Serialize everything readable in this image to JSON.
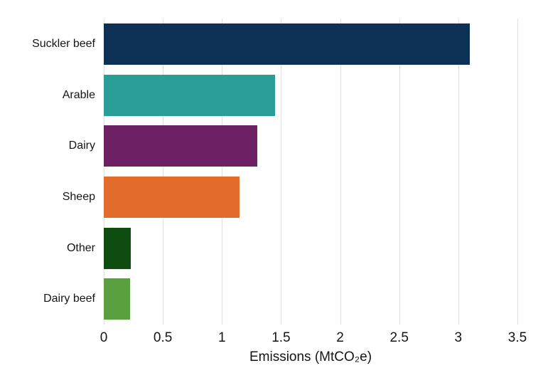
{
  "chart_data": {
    "type": "bar",
    "orientation": "horizontal",
    "title": "",
    "categories": [
      "Suckler beef",
      "Arable",
      "Dairy",
      "Sheep",
      "Other",
      "Dairy beef"
    ],
    "values": [
      3.1,
      1.45,
      1.3,
      1.15,
      0.23,
      0.22
    ],
    "bar_colors": [
      "#0c3155",
      "#2a9d96",
      "#6e2164",
      "#e36c2a",
      "#0e4c0f",
      "#5ba03f"
    ],
    "xlabel": "Emissions (MtCO₂e)",
    "ylabel": "",
    "xlim": [
      0,
      3.5
    ],
    "xticks": [
      0,
      0.5,
      1,
      1.5,
      2,
      2.5,
      3,
      3.5
    ],
    "xtick_labels": [
      "0",
      "0.5",
      "1",
      "1.5",
      "2",
      "2.5",
      "3",
      "3.5"
    ],
    "grid": "vertical",
    "legend": "none"
  },
  "colors": {
    "background": "#ffffff",
    "gridline": "#e2e2e2",
    "text": "#151515"
  }
}
